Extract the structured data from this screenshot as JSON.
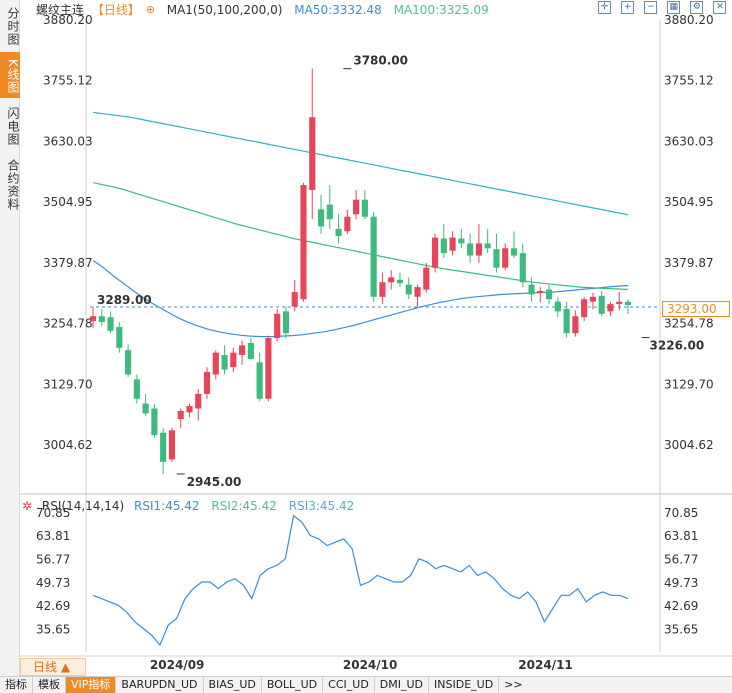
{
  "rail": {
    "tabs": [
      {
        "label": "分时图",
        "active": false
      },
      {
        "label": "K线图",
        "active": true
      },
      {
        "label": "闪电图",
        "active": false
      },
      {
        "label": "合约资料",
        "active": false
      }
    ]
  },
  "header": {
    "name": "螺纹主连",
    "period": "【日线】",
    "select_icon": "⊕",
    "ma_label": "MA1(50,100,200,0)",
    "ma50": "MA50:3332.48",
    "ma100": "MA100:3325.09"
  },
  "toolbar_icons": [
    "crosshair-icon",
    "zoom-in-icon",
    "zoom-out-icon",
    "grid-icon",
    "settings-icon",
    "close-icon"
  ],
  "rsi_header": {
    "gear_icon": "✲",
    "name": "RSI(14,14,14)",
    "rsi1": "RSI1:45.42",
    "rsi2": "RSI2:45.42",
    "rsi3": "RSI3:45.42"
  },
  "current_price": "3293.00",
  "bottom_bar": {
    "period_button": "日线 ▲",
    "tabs": [
      "指标",
      "模板",
      "VIP指标",
      "BARUPDN_UD",
      "BIAS_UD",
      "BOLL_UD",
      "CCI_UD",
      "DMI_UD",
      "INSIDE_UD",
      ">>"
    ]
  },
  "colors": {
    "up": "#e8455a",
    "down": "#3dba7e",
    "ma50": "#3a8fd6",
    "ma100": "#3dba7e",
    "ma200": "#2fb3c0",
    "rsi": "#3a8fd6",
    "accent": "#f08a25"
  },
  "chart_data": [
    {
      "type": "candlestick",
      "y_ticks": [
        "3880.20",
        "3755.12",
        "3630.03",
        "3504.95",
        "3379.87",
        "3254.78",
        "3129.70",
        "3004.62"
      ],
      "ylim": [
        2945,
        3880.2
      ],
      "x_labels": [
        {
          "label": "2024/09",
          "index": 9
        },
        {
          "label": "2024/10",
          "index": 31
        },
        {
          "label": "2024/11",
          "index": 51
        }
      ],
      "annotations": [
        {
          "label": "3780.00",
          "value": 3780,
          "index": 29,
          "color": "#e8455a"
        },
        {
          "label": "2945.00",
          "value": 2945,
          "index": 10,
          "color": "#3dba7e"
        },
        {
          "label": "3226.00",
          "value": 3226,
          "index": 63,
          "color": "#3dba7e"
        },
        {
          "label": "3289.00",
          "value": 3289,
          "index": 0,
          "color": "#e8455a"
        }
      ],
      "reference_line": 3289,
      "series": [
        {
          "name": "MA50",
          "values": [
            3385,
            3370,
            3352,
            3336,
            3320,
            3305,
            3292,
            3280,
            3268,
            3258,
            3250,
            3243,
            3238,
            3234,
            3231,
            3229,
            3228,
            3228,
            3229,
            3230,
            3232,
            3235,
            3238,
            3242,
            3247,
            3252,
            3258,
            3264,
            3270,
            3276,
            3282,
            3288,
            3293,
            3298,
            3302,
            3306,
            3309,
            3311,
            3313,
            3315,
            3316,
            3317,
            3318,
            3319,
            3320,
            3322,
            3324,
            3326,
            3328,
            3330,
            3332,
            3333
          ]
        },
        {
          "name": "MA100",
          "values": [
            3545,
            3541,
            3537,
            3532,
            3526,
            3520,
            3514,
            3508,
            3502,
            3496,
            3490,
            3484,
            3478,
            3472,
            3466,
            3460,
            3455,
            3450,
            3445,
            3440,
            3435,
            3430,
            3426,
            3422,
            3418,
            3414,
            3410,
            3406,
            3402,
            3398,
            3394,
            3390,
            3386,
            3382,
            3378,
            3374,
            3370,
            3367,
            3364,
            3361,
            3358,
            3355,
            3352,
            3349,
            3346,
            3343,
            3340,
            3338,
            3336,
            3334,
            3332,
            3330,
            3329,
            3328,
            3327,
            3326,
            3325
          ]
        },
        {
          "name": "MA200",
          "values": [
            3690,
            3688,
            3686,
            3684,
            3682,
            3680,
            3677,
            3674,
            3671,
            3668,
            3665,
            3662,
            3659,
            3656,
            3653,
            3650,
            3647,
            3644,
            3641,
            3638,
            3635,
            3632,
            3629,
            3626,
            3623,
            3620,
            3617,
            3614,
            3611,
            3608,
            3605,
            3602,
            3599,
            3596,
            3593,
            3590,
            3587,
            3584,
            3581,
            3578,
            3575,
            3572,
            3569,
            3566,
            3563,
            3560,
            3557,
            3554,
            3551,
            3548,
            3545,
            3542,
            3539,
            3536,
            3533,
            3530,
            3527,
            3524,
            3521,
            3518,
            3515,
            3512,
            3509,
            3506,
            3503,
            3500,
            3497,
            3494,
            3491,
            3488,
            3485,
            3482,
            3479
          ]
        },
        {
          "name": "candles",
          "values": [
            {
              "o": 3260,
              "h": 3289,
              "l": 3245,
              "c": 3270
            },
            {
              "o": 3270,
              "h": 3285,
              "l": 3250,
              "c": 3258
            },
            {
              "o": 3268,
              "h": 3280,
              "l": 3235,
              "c": 3240
            },
            {
              "o": 3248,
              "h": 3258,
              "l": 3195,
              "c": 3205
            },
            {
              "o": 3200,
              "h": 3212,
              "l": 3145,
              "c": 3150
            },
            {
              "o": 3140,
              "h": 3150,
              "l": 3090,
              "c": 3100
            },
            {
              "o": 3090,
              "h": 3110,
              "l": 3065,
              "c": 3070
            },
            {
              "o": 3080,
              "h": 3090,
              "l": 3020,
              "c": 3025
            },
            {
              "o": 3030,
              "h": 3040,
              "l": 2945,
              "c": 2970
            },
            {
              "o": 2975,
              "h": 3040,
              "l": 2970,
              "c": 3035
            },
            {
              "o": 3058,
              "h": 3080,
              "l": 3040,
              "c": 3075
            },
            {
              "o": 3072,
              "h": 3090,
              "l": 3062,
              "c": 3085
            },
            {
              "o": 3080,
              "h": 3120,
              "l": 3055,
              "c": 3110
            },
            {
              "o": 3110,
              "h": 3165,
              "l": 3100,
              "c": 3155
            },
            {
              "o": 3150,
              "h": 3200,
              "l": 3140,
              "c": 3195
            },
            {
              "o": 3190,
              "h": 3210,
              "l": 3150,
              "c": 3160
            },
            {
              "o": 3165,
              "h": 3205,
              "l": 3155,
              "c": 3195
            },
            {
              "o": 3190,
              "h": 3220,
              "l": 3170,
              "c": 3210
            },
            {
              "o": 3215,
              "h": 3225,
              "l": 3180,
              "c": 3182
            },
            {
              "o": 3175,
              "h": 3195,
              "l": 3095,
              "c": 3100
            },
            {
              "o": 3100,
              "h": 3230,
              "l": 3095,
              "c": 3225
            },
            {
              "o": 3225,
              "h": 3285,
              "l": 3218,
              "c": 3275
            },
            {
              "o": 3280,
              "h": 3290,
              "l": 3225,
              "c": 3235
            },
            {
              "o": 3290,
              "h": 3345,
              "l": 3280,
              "c": 3320
            },
            {
              "o": 3305,
              "h": 3545,
              "l": 3300,
              "c": 3540
            },
            {
              "o": 3530,
              "h": 3780,
              "l": 3470,
              "c": 3680
            },
            {
              "o": 3490,
              "h": 3520,
              "l": 3440,
              "c": 3455
            },
            {
              "o": 3500,
              "h": 3540,
              "l": 3450,
              "c": 3470
            },
            {
              "o": 3450,
              "h": 3480,
              "l": 3420,
              "c": 3435
            },
            {
              "o": 3445,
              "h": 3490,
              "l": 3440,
              "c": 3475
            },
            {
              "o": 3480,
              "h": 3530,
              "l": 3470,
              "c": 3510
            },
            {
              "o": 3510,
              "h": 3530,
              "l": 3470,
              "c": 3475
            },
            {
              "o": 3475,
              "h": 3485,
              "l": 3300,
              "c": 3310
            },
            {
              "o": 3310,
              "h": 3360,
              "l": 3295,
              "c": 3340
            },
            {
              "o": 3340,
              "h": 3365,
              "l": 3325,
              "c": 3350
            },
            {
              "o": 3345,
              "h": 3360,
              "l": 3330,
              "c": 3338
            },
            {
              "o": 3335,
              "h": 3350,
              "l": 3305,
              "c": 3315
            },
            {
              "o": 3310,
              "h": 3335,
              "l": 3290,
              "c": 3330
            },
            {
              "o": 3325,
              "h": 3380,
              "l": 3318,
              "c": 3370
            },
            {
              "o": 3370,
              "h": 3440,
              "l": 3360,
              "c": 3432
            },
            {
              "o": 3430,
              "h": 3460,
              "l": 3390,
              "c": 3400
            },
            {
              "o": 3405,
              "h": 3445,
              "l": 3395,
              "c": 3432
            },
            {
              "o": 3430,
              "h": 3450,
              "l": 3410,
              "c": 3420
            },
            {
              "o": 3420,
              "h": 3440,
              "l": 3380,
              "c": 3395
            },
            {
              "o": 3395,
              "h": 3460,
              "l": 3380,
              "c": 3420
            },
            {
              "o": 3420,
              "h": 3450,
              "l": 3400,
              "c": 3410
            },
            {
              "o": 3408,
              "h": 3440,
              "l": 3360,
              "c": 3370
            },
            {
              "o": 3370,
              "h": 3420,
              "l": 3365,
              "c": 3410
            },
            {
              "o": 3410,
              "h": 3445,
              "l": 3390,
              "c": 3395
            },
            {
              "o": 3400,
              "h": 3420,
              "l": 3330,
              "c": 3340
            },
            {
              "o": 3335,
              "h": 3350,
              "l": 3300,
              "c": 3315
            },
            {
              "o": 3318,
              "h": 3330,
              "l": 3298,
              "c": 3322
            },
            {
              "o": 3325,
              "h": 3335,
              "l": 3295,
              "c": 3305
            },
            {
              "o": 3300,
              "h": 3310,
              "l": 3268,
              "c": 3280
            },
            {
              "o": 3285,
              "h": 3300,
              "l": 3226,
              "c": 3235
            },
            {
              "o": 3235,
              "h": 3282,
              "l": 3228,
              "c": 3270
            },
            {
              "o": 3268,
              "h": 3310,
              "l": 3260,
              "c": 3305
            },
            {
              "o": 3300,
              "h": 3318,
              "l": 3285,
              "c": 3310
            },
            {
              "o": 3312,
              "h": 3322,
              "l": 3270,
              "c": 3275
            },
            {
              "o": 3280,
              "h": 3300,
              "l": 3270,
              "c": 3295
            },
            {
              "o": 3295,
              "h": 3320,
              "l": 3282,
              "c": 3300
            },
            {
              "o": 3300,
              "h": 3305,
              "l": 3275,
              "c": 3293
            }
          ]
        }
      ]
    },
    {
      "type": "line",
      "y_ticks": [
        "70.85",
        "63.81",
        "56.77",
        "49.73",
        "42.69",
        "35.65"
      ],
      "ylim": [
        28.9,
        72.6
      ],
      "series": [
        {
          "name": "RSI",
          "values": [
            46,
            45,
            44,
            43,
            41,
            38,
            36,
            34,
            31,
            37,
            39,
            45,
            48,
            50,
            50,
            48,
            50,
            51,
            49,
            45,
            52,
            54,
            55,
            57,
            70,
            68,
            64,
            63,
            61,
            62,
            63,
            60,
            49,
            50,
            52,
            51,
            50,
            50,
            52,
            57,
            56,
            54,
            55,
            54,
            53,
            55,
            52,
            53,
            51,
            48,
            46,
            45,
            47,
            44,
            38,
            42,
            46,
            46,
            48,
            44,
            46,
            47,
            46,
            46,
            45
          ]
        }
      ]
    }
  ]
}
